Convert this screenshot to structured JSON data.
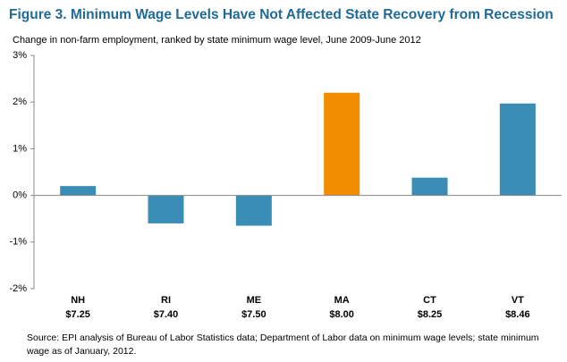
{
  "chart_data": {
    "type": "bar",
    "title": "Figure 3. Minimum Wage Levels Have Not Affected State Recovery from Recession",
    "subtitle": "Change in non-farm employment,  ranked by state minimum wage level, June 2009-June 2012",
    "categories": [
      "NH",
      "RI",
      "ME",
      "MA",
      "CT",
      "VT"
    ],
    "category_sublabels": [
      "$7.25",
      "$7.40",
      "$7.50",
      "$8.00",
      "$8.25",
      "$8.46"
    ],
    "values": [
      0.2,
      -0.6,
      -0.65,
      2.2,
      0.38,
      1.97
    ],
    "colors": [
      "#3a8db5",
      "#3a8db5",
      "#3a8db5",
      "#f28c00",
      "#3a8db5",
      "#3a8db5"
    ],
    "ylim": [
      -2,
      3
    ],
    "yticks": [
      {
        "value": -2,
        "label": "-2%"
      },
      {
        "value": -1,
        "label": "-1%"
      },
      {
        "value": 0,
        "label": "0%"
      },
      {
        "value": 1,
        "label": "1%"
      },
      {
        "value": 2,
        "label": "2%"
      },
      {
        "value": 3,
        "label": "3%"
      }
    ],
    "grid": false,
    "source": "Source: EPI analysis of Bureau of Labor Statistics data; Department of Labor data on minimum wage levels; state minimum wage as of January, 2012."
  }
}
